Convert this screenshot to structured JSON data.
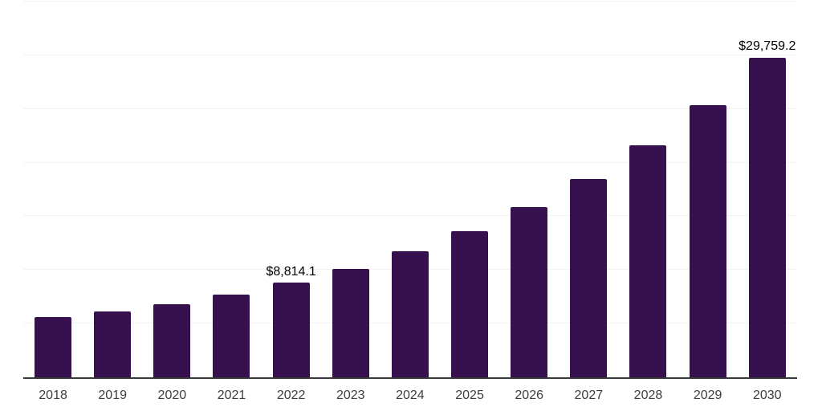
{
  "chart_data": {
    "type": "bar",
    "title": "",
    "xlabel": "",
    "ylabel": "",
    "categories": [
      "2018",
      "2019",
      "2020",
      "2021",
      "2022",
      "2023",
      "2024",
      "2025",
      "2026",
      "2027",
      "2028",
      "2029",
      "2030"
    ],
    "values": [
      5600,
      6170,
      6840,
      7720,
      8814.1,
      10120,
      11750,
      13620,
      15830,
      18470,
      21590,
      25380,
      29759.2
    ],
    "bar_labels": [
      "",
      "",
      "",
      "",
      "$8,814.1",
      "",
      "",
      "",
      "",
      "",
      "",
      "",
      "$29,759.2"
    ],
    "ylim": [
      0,
      35000
    ],
    "gridline_step": 5000,
    "grid": true,
    "legend": false,
    "y_axis_labels_visible": false
  },
  "colors": {
    "bar": "#36114E",
    "axis_line": "#3A3A3A",
    "gridline": "#F3F3F3",
    "tick_label": "#3D3D3D",
    "value_label": "#000000",
    "background": "#FFFFFF"
  }
}
